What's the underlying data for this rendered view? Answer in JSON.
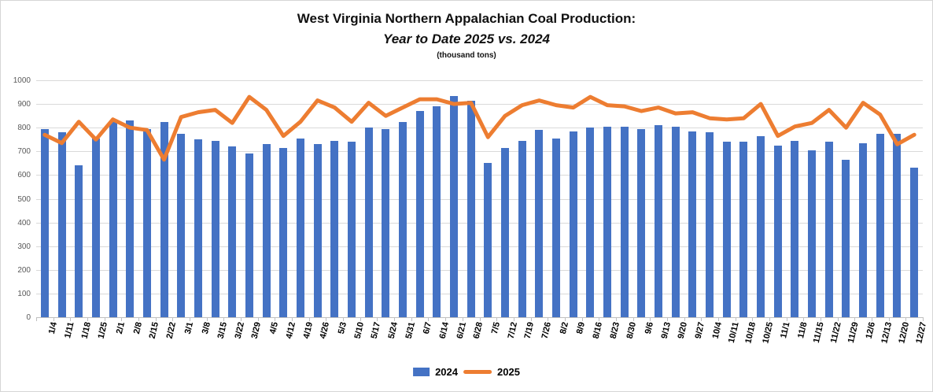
{
  "chart_data": {
    "type": "combo",
    "title": "West Virginia Northern Appalachian Coal Production:",
    "subtitle": "Year to Date 2025 vs. 2024",
    "note": "(thousand tons)",
    "categories": [
      "1/4",
      "1/11",
      "1/18",
      "1/25",
      "2/1",
      "2/8",
      "2/15",
      "2/22",
      "3/1",
      "3/8",
      "3/15",
      "3/22",
      "3/29",
      "4/5",
      "4/12",
      "4/19",
      "4/26",
      "5/3",
      "5/10",
      "5/17",
      "5/24",
      "5/31",
      "6/7",
      "6/14",
      "6/21",
      "6/28",
      "7/5",
      "7/12",
      "7/19",
      "7/26",
      "8/2",
      "8/9",
      "8/16",
      "8/23",
      "8/30",
      "9/6",
      "9/13",
      "9/20",
      "9/27",
      "10/4",
      "10/11",
      "10/18",
      "10/25",
      "11/1",
      "11/8",
      "11/15",
      "11/22",
      "11/29",
      "12/6",
      "12/13",
      "12/20",
      "12/27"
    ],
    "series": [
      {
        "name": "2024",
        "type": "bar",
        "color": "#4472C4",
        "values": [
          795,
          780,
          640,
          755,
          825,
          830,
          795,
          825,
          775,
          750,
          745,
          720,
          690,
          730,
          715,
          755,
          730,
          745,
          740,
          800,
          795,
          825,
          870,
          890,
          935,
          915,
          650,
          715,
          745,
          790,
          755,
          785,
          800,
          805,
          805,
          795,
          810,
          805,
          785,
          780,
          740,
          740,
          765,
          725,
          745,
          705,
          740,
          665,
          735,
          775,
          775,
          630
        ]
      },
      {
        "name": "2025",
        "type": "line",
        "color": "#ED7D31",
        "values": [
          770,
          735,
          825,
          750,
          835,
          800,
          790,
          665,
          845,
          865,
          875,
          820,
          930,
          875,
          765,
          825,
          915,
          885,
          825,
          905,
          850,
          885,
          920,
          920,
          900,
          905,
          760,
          850,
          895,
          915,
          895,
          885,
          930,
          895,
          890,
          870,
          885,
          860,
          865,
          840,
          835,
          840,
          900,
          765,
          805,
          820,
          875,
          800,
          905,
          855,
          730,
          770
        ]
      }
    ],
    "ylim": [
      0,
      1000
    ],
    "ytick_interval": 100,
    "yticklabels": [
      "0",
      "100",
      "200",
      "300",
      "400",
      "500",
      "600",
      "700",
      "800",
      "900",
      "1000"
    ],
    "grid": "on",
    "legend_position": "bottom",
    "gridline_color": "#d9d9d9",
    "axis_line_color": "#bfbfbf",
    "axis_label_color": "#595959"
  }
}
